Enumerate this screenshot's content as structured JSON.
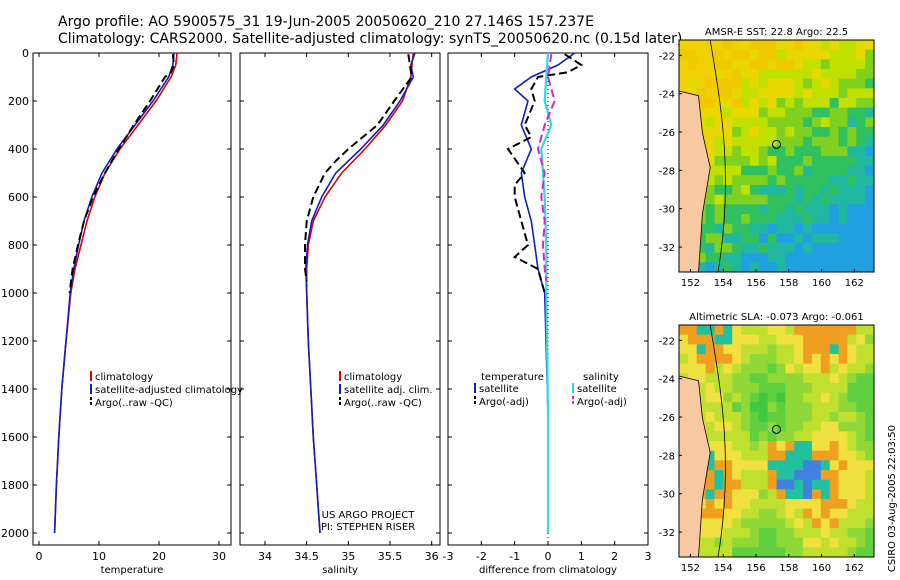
{
  "header": {
    "line1": "Argo profile: AO 5900575_31 19-Jun-2005 20050620_210 27.146S 157.237E",
    "line2": "Climatology: CARS2000. Satellite-adjusted climatology: synTS_20050620.nc (0.15d later)"
  },
  "colors": {
    "climatology": "#e00000",
    "satellite": "#1020c0",
    "argo": "#000000",
    "sal_sat": "#30d8e8",
    "sal_argo": "#e020d0"
  },
  "credit": {
    "line1": "US ARGO PROJECT",
    "line2": "PI: STEPHEN RISER"
  },
  "footer": "CSIRO 03-Aug-2005 22:03:50",
  "chart_data": [
    {
      "type": "line",
      "xlabel": "temperature",
      "xlim": [
        -1,
        32
      ],
      "ylim": [
        0,
        2050
      ],
      "xticks": [
        "0",
        "10",
        "20",
        "30"
      ],
      "xtick_values": [
        0,
        10,
        20,
        30
      ],
      "yticks": [
        "0",
        "200",
        "400",
        "600",
        "800",
        "1000",
        "1200",
        "1400",
        "1600",
        "1800",
        "2000"
      ],
      "ytick_values": [
        0,
        200,
        400,
        600,
        800,
        1000,
        1200,
        1400,
        1600,
        1800,
        2000
      ],
      "legend": [
        "climatology",
        "satellite-adjusted climatology",
        "Argo(..raw -QC)"
      ],
      "series": [
        {
          "name": "climatology",
          "style": "solid",
          "depth": [
            0,
            50,
            100,
            200,
            300,
            400,
            500,
            600,
            700,
            800,
            900,
            1000,
            1200,
            1400,
            1600,
            1800,
            2000
          ],
          "values": [
            23,
            22.8,
            22,
            19.5,
            16.5,
            13.5,
            11,
            9.3,
            8,
            7,
            6,
            5.3,
            4.5,
            3.8,
            3.3,
            2.9,
            2.6
          ]
        },
        {
          "name": "satellite-adjusted climatology",
          "style": "solid",
          "depth": [
            0,
            50,
            100,
            200,
            300,
            400,
            500,
            600,
            700,
            800,
            900,
            1000,
            1200,
            1400,
            1600,
            1800,
            2000
          ],
          "values": [
            22.5,
            22.3,
            21.6,
            19,
            16,
            13,
            10.5,
            8.8,
            7.5,
            6.6,
            5.8,
            5.2,
            4.5,
            3.8,
            3.3,
            2.9,
            2.6
          ]
        },
        {
          "name": "Argo(..raw -QC)",
          "style": "dashed",
          "depth": [
            5,
            50,
            80,
            100,
            200,
            300,
            400,
            500,
            600,
            700,
            800,
            900,
            1000
          ],
          "values": [
            22.3,
            22.5,
            22,
            21,
            18.5,
            15.8,
            13.3,
            11,
            9,
            7.5,
            6.5,
            5.6,
            5.1
          ]
        }
      ]
    },
    {
      "type": "line",
      "xlabel": "salinity",
      "xlim": [
        33.7,
        36.1
      ],
      "ylim": [
        0,
        2050
      ],
      "xticks": [
        "34",
        "34.5",
        "35",
        "35.5",
        "36"
      ],
      "xtick_values": [
        34,
        34.5,
        35,
        35.5,
        36
      ],
      "legend": [
        "climatology",
        "satellite adj. clim.",
        "Argo(..raw -QC)"
      ],
      "series": [
        {
          "name": "climatology",
          "style": "solid",
          "depth": [
            0,
            100,
            200,
            300,
            400,
            500,
            600,
            700,
            800,
            900,
            1000,
            1200,
            1400,
            1600,
            1800,
            2000
          ],
          "values": [
            35.78,
            35.75,
            35.65,
            35.45,
            35.2,
            34.92,
            34.72,
            34.58,
            34.52,
            34.5,
            34.5,
            34.52,
            34.55,
            34.58,
            34.62,
            34.66
          ]
        },
        {
          "name": "satellite adj. clim.",
          "style": "solid",
          "depth": [
            0,
            50,
            100,
            200,
            300,
            400,
            500,
            600,
            700,
            800,
            900,
            1000,
            1200,
            1400,
            1600,
            1800,
            2000
          ],
          "values": [
            35.8,
            35.75,
            35.78,
            35.62,
            35.42,
            35.15,
            34.85,
            34.68,
            34.56,
            34.51,
            34.49,
            34.5,
            34.52,
            34.55,
            34.58,
            34.62,
            34.66
          ]
        },
        {
          "name": "Argo(..raw -QC)",
          "style": "dashed",
          "depth": [
            5,
            100,
            200,
            300,
            400,
            450,
            500,
            600,
            700,
            800,
            900,
            950
          ],
          "values": [
            35.72,
            35.76,
            35.55,
            35.35,
            35.0,
            34.85,
            34.72,
            34.58,
            34.5,
            34.48,
            34.48,
            34.5
          ]
        }
      ]
    },
    {
      "type": "line",
      "xlabel": "difference from climatology",
      "xlim": [
        -3,
        3
      ],
      "ylim": [
        0,
        2050
      ],
      "xticks": [
        "-3",
        "-2",
        "-1",
        "0",
        "1",
        "2",
        "3"
      ],
      "xtick_values": [
        -3,
        -2,
        -1,
        0,
        1,
        2,
        3
      ],
      "legend_left": [
        "temperature",
        "satellite",
        "Argo(-adj)"
      ],
      "legend_right": [
        "salinity",
        "satellite",
        "Argo(-adj)"
      ],
      "series": [
        {
          "name": "temperature satellite",
          "style": "solid",
          "color": "satellite",
          "depth": [
            0,
            50,
            100,
            150,
            200,
            300,
            400,
            500,
            600,
            700,
            800,
            900,
            1000,
            1500,
            2000
          ],
          "values": [
            0.8,
            0.3,
            -0.5,
            -1.0,
            -0.6,
            -0.8,
            -0.5,
            -0.8,
            -0.7,
            -0.5,
            -0.4,
            -0.3,
            -0.1,
            0,
            0
          ]
        },
        {
          "name": "temperature Argo(-adj)",
          "style": "dashed",
          "color": "argo",
          "depth": [
            5,
            50,
            80,
            100,
            150,
            200,
            300,
            350,
            400,
            500,
            550,
            600,
            700,
            800,
            850,
            900,
            950,
            1000
          ],
          "values": [
            0.5,
            1.0,
            0.6,
            -0.3,
            -0.5,
            -0.4,
            -0.7,
            -0.5,
            -1.2,
            -0.7,
            -1.0,
            -1.0,
            -0.8,
            -0.6,
            -1.0,
            -0.3,
            -0.2,
            -0.1
          ]
        },
        {
          "name": "salinity satellite",
          "style": "solid",
          "color": "sal_sat",
          "depth": [
            0,
            100,
            200,
            300,
            400,
            500,
            600,
            800,
            1000,
            1500,
            2000
          ],
          "values": [
            0,
            -0.05,
            -0.1,
            0.1,
            -0.2,
            -0.15,
            -0.1,
            -0.05,
            -0.05,
            0,
            0
          ]
        },
        {
          "name": "salinity Argo(-adj)",
          "style": "dashed",
          "color": "sal_argo",
          "depth": [
            5,
            100,
            200,
            300,
            400,
            500,
            600,
            700,
            800,
            900,
            950
          ],
          "values": [
            0.1,
            0,
            0.2,
            -0.1,
            -0.3,
            -0.1,
            -0.2,
            -0.1,
            -0.15,
            -0.1,
            -0.05
          ]
        }
      ]
    },
    {
      "type": "heatmap",
      "title": "AMSR-E SST: 22.8 Argo: 22.5",
      "xticks": [
        "152",
        "154",
        "156",
        "158",
        "160",
        "162"
      ],
      "yticks": [
        "-22",
        "-24",
        "-26",
        "-28",
        "-30",
        "-32"
      ]
    },
    {
      "type": "heatmap",
      "title": "Altimetric SLA: -0.073 Argo: -0.061",
      "xticks": [
        "152",
        "154",
        "156",
        "158",
        "160",
        "162"
      ],
      "yticks": [
        "-22",
        "-24",
        "-26",
        "-28",
        "-30",
        "-32"
      ]
    }
  ]
}
